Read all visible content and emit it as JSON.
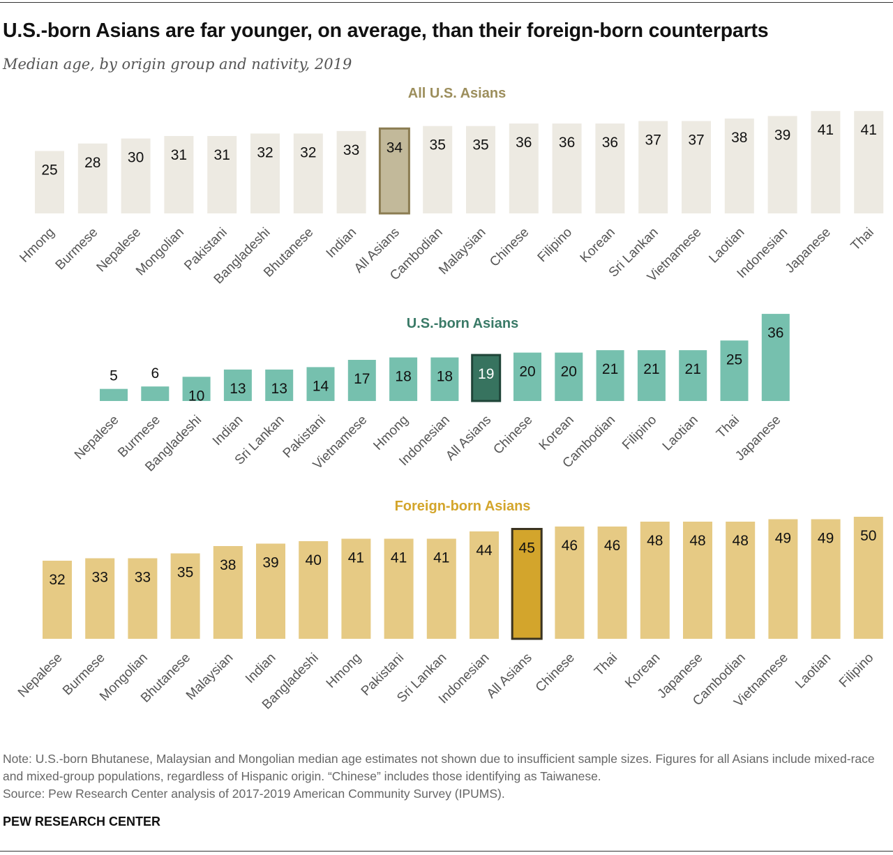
{
  "title": "U.S.-born Asians are far younger, on average, than their foreign-born counterparts",
  "subtitle": "Median age, by origin group and nativity, 2019",
  "chart_data": [
    {
      "type": "bar",
      "title": "All U.S. Asians",
      "highlight": "All Asians",
      "colors": {
        "bar": "#edeae2",
        "highlight": "#c2b99a",
        "highlight_border": "#8b7c52",
        "title": "#9c8e5c"
      },
      "categories": [
        "Hmong",
        "Burmese",
        "Nepalese",
        "Mongolian",
        "Pakistani",
        "Bangladeshi",
        "Bhutanese",
        "Indian",
        "All Asians",
        "Cambodian",
        "Malaysian",
        "Chinese",
        "Filipino",
        "Korean",
        "Sri Lankan",
        "Vietnamese",
        "Laotian",
        "Indonesian",
        "Japanese",
        "Thai"
      ],
      "values": [
        25,
        28,
        30,
        31,
        31,
        32,
        32,
        33,
        34,
        35,
        35,
        36,
        36,
        36,
        37,
        37,
        38,
        39,
        41,
        41
      ]
    },
    {
      "type": "bar",
      "title": "U.S.-born Asians",
      "highlight": "All Asians",
      "colors": {
        "bar": "#76c0ae",
        "highlight": "#37735f",
        "highlight_border": "#1f4438",
        "title": "#3a7a67"
      },
      "categories": [
        "Nepalese",
        "Burmese",
        "Bangladeshi",
        "Indian",
        "Sri Lankan",
        "Pakistani",
        "Vietnamese",
        "Hmong",
        "Indonesian",
        "All Asians",
        "Chinese",
        "Korean",
        "Cambodian",
        "Filipino",
        "Laotian",
        "Thai",
        "Japanese"
      ],
      "values": [
        5,
        6,
        10,
        13,
        13,
        14,
        17,
        18,
        18,
        19,
        20,
        20,
        21,
        21,
        21,
        25,
        36
      ]
    },
    {
      "type": "bar",
      "title": "Foreign-born Asians",
      "highlight": "All Asians",
      "colors": {
        "bar": "#e6ca84",
        "highlight": "#d3a52c",
        "highlight_border": "#3a3320",
        "title": "#d3a52b"
      },
      "categories": [
        "Nepalese",
        "Burmese",
        "Mongolian",
        "Bhutanese",
        "Malaysian",
        "Indian",
        "Bangladeshi",
        "Hmong",
        "Pakistani",
        "Sri Lankan",
        "Indonesian",
        "All Asians",
        "Chinese",
        "Thai",
        "Korean",
        "Japanese",
        "Cambodian",
        "Vietnamese",
        "Laotian",
        "Filipino"
      ],
      "values": [
        32,
        33,
        33,
        35,
        38,
        39,
        40,
        41,
        41,
        41,
        44,
        45,
        46,
        46,
        48,
        48,
        48,
        49,
        49,
        50
      ]
    }
  ],
  "note": "Note: U.S.-born Bhutanese, Malaysian and Mongolian median age estimates not shown due to insufficient sample sizes. Figures for all Asians include mixed-race and mixed-group populations, regardless of Hispanic origin. “Chinese” includes those identifying as Taiwanese.",
  "source": "Source: Pew Research Center analysis of 2017-2019 American Community Survey (IPUMS).",
  "brand": "PEW RESEARCH CENTER"
}
